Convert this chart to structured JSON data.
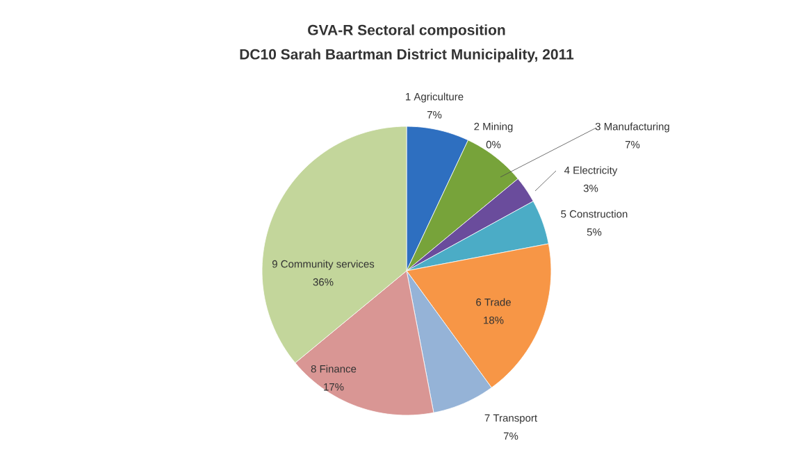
{
  "chart_data": {
    "type": "pie",
    "title": "GVA-R Sectoral composition",
    "subtitle": "DC10 Sarah Baartman District Municipality, 2011",
    "categories": [
      "1 Agriculture",
      "2 Mining",
      "3 Manufacturing",
      "4 Electricity",
      "5 Construction",
      "6 Trade",
      "7 Transport",
      "8 Finance",
      "9 Community services"
    ],
    "values": [
      7,
      0,
      7,
      3,
      5,
      18,
      7,
      17,
      36
    ],
    "value_labels": [
      "7%",
      "0%",
      "7%",
      "3%",
      "5%",
      "18%",
      "7%",
      "17%",
      "36%"
    ],
    "colors": [
      "#2e6fc0",
      "#c0504d",
      "#77a33a",
      "#6a4c9c",
      "#4bacc6",
      "#f79646",
      "#95b3d7",
      "#d99694",
      "#c3d69b"
    ]
  }
}
